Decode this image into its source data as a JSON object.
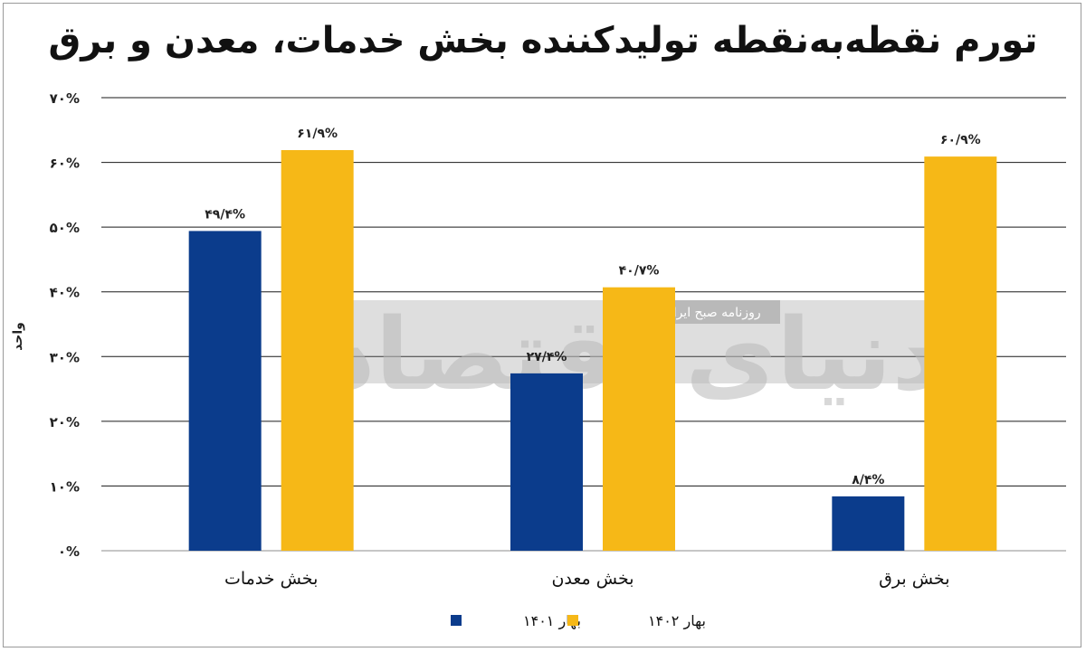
{
  "chart_data": {
    "type": "bar",
    "title": "تورم نقطه‌به‌نقطه تولیدکننده بخش خدمات، معدن و برق",
    "ylabel": "واحد",
    "xlabel": "",
    "ylim": [
      0,
      70
    ],
    "yticks": [
      0,
      10,
      20,
      30,
      40,
      50,
      60,
      70
    ],
    "ytick_labels": [
      "۰%",
      "۱۰%",
      "۲۰%",
      "۳۰%",
      "۴۰%",
      "۵۰%",
      "۶۰%",
      "۷۰%"
    ],
    "categories": [
      "بخش خدمات",
      "بخش معدن",
      "بخش برق"
    ],
    "series": [
      {
        "name": "بهار ۱۴۰۱",
        "color": "#0b3c8c",
        "values": [
          49.4,
          27.4,
          8.4
        ],
        "labels": [
          "۴۹/۴%",
          "۲۷/۴%",
          "۸/۴%"
        ]
      },
      {
        "name": "بهار ۱۴۰۲",
        "color": "#f6b817",
        "values": [
          61.9,
          40.7,
          60.9
        ],
        "labels": [
          "۶۱/۹%",
          "۴۰/۷%",
          "۶۰/۹%"
        ]
      }
    ],
    "grid": true,
    "legend_position": "bottom"
  },
  "watermark": {
    "brand": "دنیای اقتصاد",
    "tagline": "روزنامه صبح ایران"
  }
}
